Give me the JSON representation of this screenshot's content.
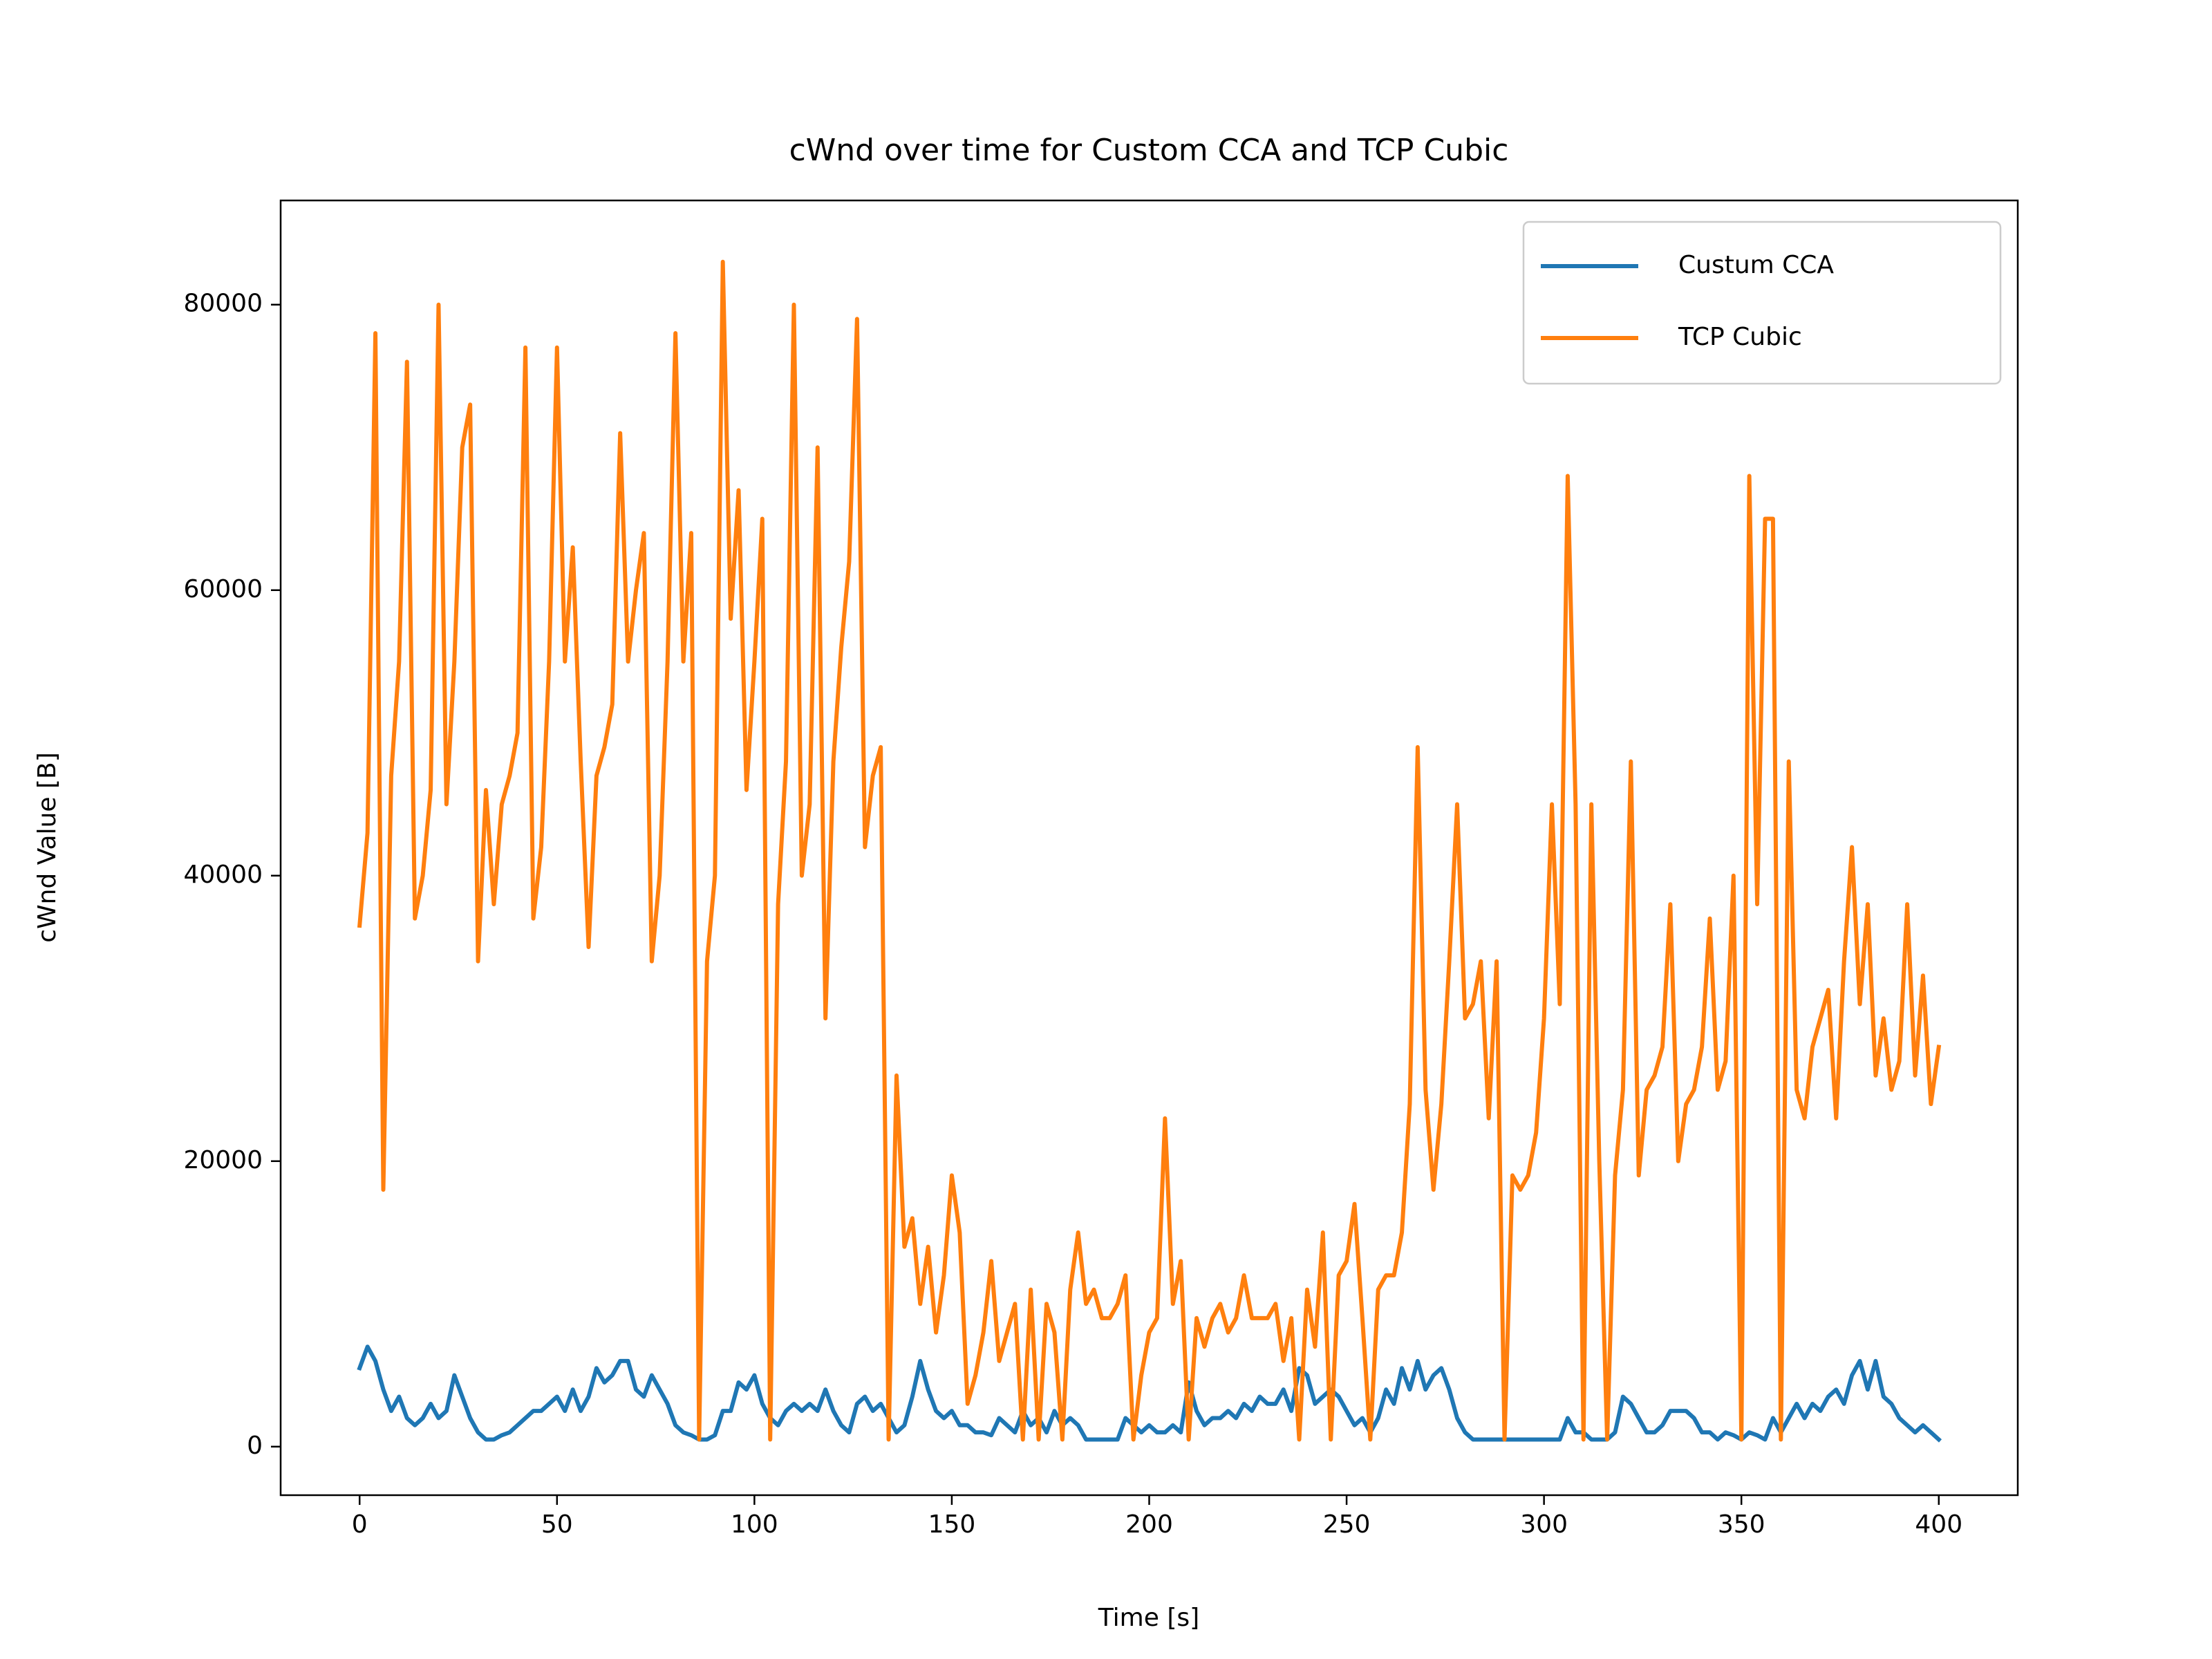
{
  "chart_data": {
    "type": "line",
    "title": "cWnd over time for Custom CCA and TCP Cubic",
    "xlabel": "Time [s]",
    "ylabel": "cWnd Value [B]",
    "xlim": [
      -20,
      420
    ],
    "ylim": [
      -3400,
      87300
    ],
    "xticks": [
      0,
      50,
      100,
      150,
      200,
      250,
      300,
      350,
      400
    ],
    "yticks": [
      0,
      20000,
      40000,
      60000,
      80000
    ],
    "legend": "upper right",
    "grid": false,
    "x": [
      0,
      2,
      4,
      6,
      8,
      10,
      12,
      14,
      16,
      18,
      20,
      22,
      24,
      26,
      28,
      30,
      32,
      34,
      36,
      38,
      40,
      42,
      44,
      46,
      48,
      50,
      52,
      54,
      56,
      58,
      60,
      62,
      64,
      66,
      68,
      70,
      72,
      74,
      76,
      78,
      80,
      82,
      84,
      86,
      88,
      90,
      92,
      94,
      96,
      98,
      100,
      102,
      104,
      106,
      108,
      110,
      112,
      114,
      116,
      118,
      120,
      122,
      124,
      126,
      128,
      130,
      132,
      134,
      136,
      138,
      140,
      142,
      144,
      146,
      148,
      150,
      152,
      154,
      156,
      158,
      160,
      162,
      164,
      166,
      168,
      170,
      172,
      174,
      176,
      178,
      180,
      182,
      184,
      186,
      188,
      190,
      192,
      194,
      196,
      198,
      200,
      202,
      204,
      206,
      208,
      210,
      212,
      214,
      216,
      218,
      220,
      222,
      224,
      226,
      228,
      230,
      232,
      234,
      236,
      238,
      240,
      242,
      244,
      246,
      248,
      250,
      252,
      254,
      256,
      258,
      260,
      262,
      264,
      266,
      268,
      270,
      272,
      274,
      276,
      278,
      280,
      282,
      284,
      286,
      288,
      290,
      292,
      294,
      296,
      298,
      300,
      302,
      304,
      306,
      308,
      310,
      312,
      314,
      316,
      318,
      320,
      322,
      324,
      326,
      328,
      330,
      332,
      334,
      336,
      338,
      340,
      342,
      344,
      346,
      348,
      350,
      352,
      354,
      356,
      358,
      360,
      362,
      364,
      366,
      368,
      370,
      372,
      374,
      376,
      378,
      380,
      382,
      384,
      386,
      388,
      390,
      392,
      394,
      396,
      398,
      400
    ],
    "series": [
      {
        "name": "Custum CCA",
        "color": "#1f77b4",
        "values": [
          5500,
          7000,
          6000,
          4000,
          2500,
          3500,
          2000,
          1500,
          2000,
          3000,
          2000,
          2500,
          5000,
          3500,
          2000,
          1000,
          500,
          500,
          800,
          1000,
          1500,
          2000,
          2500,
          2500,
          3000,
          3500,
          2500,
          4000,
          2500,
          3500,
          5500,
          4500,
          5000,
          6000,
          6000,
          4000,
          3500,
          5000,
          4000,
          3000,
          1500,
          1000,
          800,
          500,
          500,
          800,
          2500,
          2500,
          4500,
          4000,
          5000,
          3000,
          2000,
          1500,
          2500,
          3000,
          2500,
          3000,
          2500,
          4000,
          2500,
          1500,
          1000,
          3000,
          3500,
          2500,
          3000,
          2000,
          1000,
          1500,
          3500,
          6000,
          4000,
          2500,
          2000,
          2500,
          1500,
          1500,
          1000,
          1000,
          800,
          2000,
          1500,
          1000,
          2500,
          1500,
          2000,
          1000,
          2500,
          1500,
          2000,
          1500,
          500,
          500,
          500,
          500,
          500,
          2000,
          1500,
          1000,
          1500,
          1000,
          1000,
          1500,
          1000,
          4500,
          2500,
          1500,
          2000,
          2000,
          2500,
          2000,
          3000,
          2500,
          3500,
          3000,
          3000,
          4000,
          2500,
          5500,
          5000,
          3000,
          3500,
          4000,
          3500,
          2500,
          1500,
          2000,
          1000,
          2000,
          4000,
          3000,
          5500,
          4000,
          6000,
          4000,
          5000,
          5500,
          4000,
          2000,
          1000,
          500,
          500,
          500,
          500,
          500,
          500,
          500,
          500,
          500,
          500,
          500,
          500,
          2000,
          1000,
          1000,
          500,
          500,
          500,
          1000,
          3500,
          3000,
          2000,
          1000,
          1000,
          1500,
          2500,
          2500,
          2500,
          2000,
          1000,
          1000,
          500,
          1000,
          800,
          500,
          1000,
          800,
          500,
          2000,
          1000,
          2000,
          3000,
          2000,
          3000,
          2500,
          3500,
          4000,
          3000,
          5000,
          6000,
          4000,
          6000,
          3500,
          3000,
          2000,
          1500,
          1000,
          1500,
          1000,
          500
        ]
      },
      {
        "name": "TCP Cubic",
        "color": "#ff7f0e",
        "values": [
          36500,
          43000,
          78000,
          18000,
          47000,
          55000,
          76000,
          37000,
          40000,
          46000,
          80000,
          45000,
          55000,
          70000,
          73000,
          34000,
          46000,
          38000,
          45000,
          47000,
          50000,
          77000,
          37000,
          42000,
          55000,
          77000,
          55000,
          63000,
          48000,
          35000,
          47000,
          49000,
          52000,
          71000,
          55000,
          60000,
          64000,
          34000,
          40000,
          55000,
          78000,
          55000,
          64000,
          500,
          34000,
          40000,
          83000,
          58000,
          67000,
          46000,
          55000,
          65000,
          500,
          38000,
          48000,
          80000,
          40000,
          45000,
          70000,
          30000,
          48000,
          56000,
          62000,
          79000,
          42000,
          47000,
          49000,
          500,
          26000,
          14000,
          16000,
          10000,
          14000,
          8000,
          12000,
          19000,
          15000,
          3000,
          5000,
          8000,
          13000,
          6000,
          8000,
          10000,
          500,
          11000,
          500,
          10000,
          8000,
          500,
          11000,
          15000,
          10000,
          11000,
          9000,
          9000,
          10000,
          12000,
          500,
          5000,
          8000,
          9000,
          23000,
          10000,
          13000,
          500,
          9000,
          7000,
          9000,
          10000,
          8000,
          9000,
          12000,
          9000,
          9000,
          9000,
          10000,
          6000,
          9000,
          500,
          11000,
          7000,
          15000,
          500,
          12000,
          13000,
          17000,
          9000,
          500,
          11000,
          12000,
          12000,
          15000,
          24000,
          49000,
          25000,
          18000,
          24000,
          34000,
          45000,
          30000,
          31000,
          34000,
          23000,
          34000,
          500,
          19000,
          18000,
          19000,
          22000,
          30000,
          45000,
          31000,
          68000,
          45000,
          500,
          45000,
          20000,
          500,
          19000,
          25000,
          48000,
          19000,
          25000,
          26000,
          28000,
          38000,
          20000,
          24000,
          25000,
          28000,
          37000,
          25000,
          27000,
          40000,
          500,
          68000,
          38000,
          65000,
          65000,
          500,
          48000,
          25000,
          23000,
          28000,
          30000,
          32000,
          23000,
          34000,
          42000,
          31000,
          38000,
          26000,
          30000,
          25000,
          27000,
          38000,
          26000,
          33000,
          24000,
          28000
        ]
      }
    ]
  }
}
